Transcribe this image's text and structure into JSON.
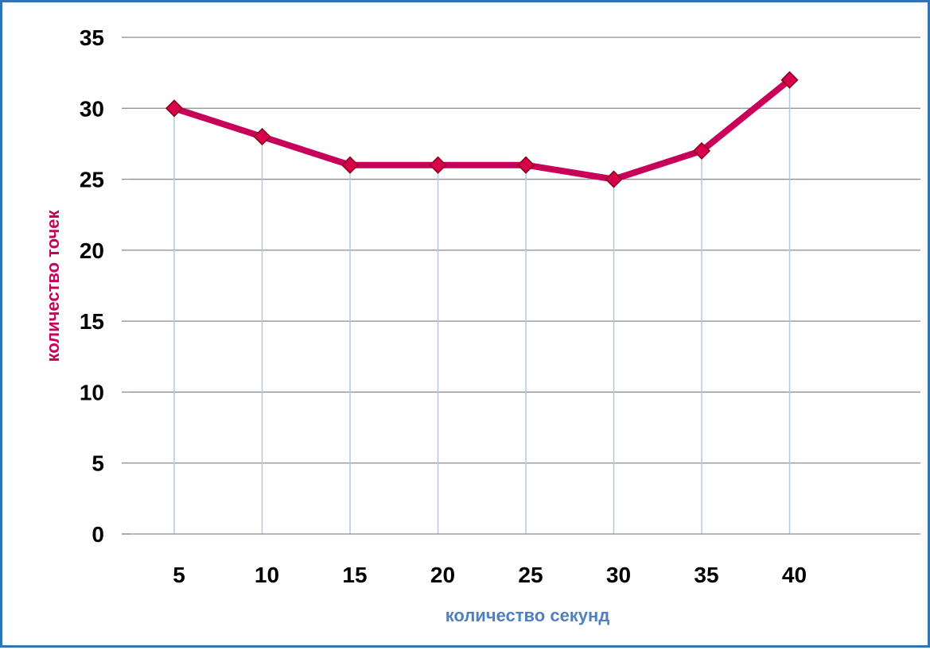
{
  "chart_data": {
    "type": "line",
    "title": "",
    "xlabel": "количество секунд",
    "ylabel": "количество точек",
    "categories": [
      "5",
      "10",
      "15",
      "20",
      "25",
      "30",
      "35",
      "40"
    ],
    "series": [
      {
        "values": [
          30,
          28,
          26,
          26,
          26,
          25,
          27,
          32
        ]
      }
    ],
    "ylim": [
      0,
      35
    ],
    "yticks": [
      "0",
      "5",
      "10",
      "15",
      "20",
      "25",
      "30",
      "35"
    ],
    "grid": "horizontal major gridlines; vertical drop lines at each point",
    "legend": "none",
    "colors": {
      "line": "#c8005a",
      "marker_fill": "#d6004c",
      "marker_edge": "#8b0015",
      "gridline": "#8c8c8c",
      "drop_line": "#b4c7e7",
      "xlabel": "#4f81bd",
      "ylabel": "#c8005a",
      "border": "#2e75b6"
    }
  }
}
